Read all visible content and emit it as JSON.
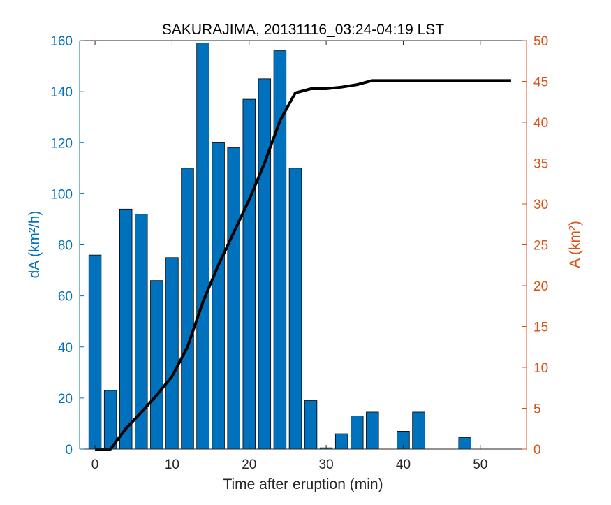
{
  "chart_data": {
    "type": "bar",
    "title": "SAKURAJIMA, 20131116_03:24-04:19 LST",
    "xlabel": "Time after eruption (min)",
    "ylabel_left": "dA (km²/h)",
    "ylabel_right": "A (km²)",
    "xlim": [
      -2,
      56
    ],
    "ylim_left": [
      0,
      160
    ],
    "ylim_right": [
      0,
      50
    ],
    "xticks": [
      0,
      10,
      20,
      30,
      40,
      50
    ],
    "yticks_left": [
      0,
      20,
      40,
      60,
      80,
      100,
      120,
      140,
      160
    ],
    "yticks_right": [
      0,
      5,
      10,
      15,
      20,
      25,
      30,
      35,
      40,
      45,
      50
    ],
    "left_axis_color": "#0072BD",
    "right_axis_color": "#D95319",
    "bar_color": "#0072BD",
    "line_color": "#000000",
    "bars": {
      "name": "dA",
      "axis": "left",
      "x": [
        0,
        2,
        4,
        6,
        8,
        10,
        12,
        14,
        16,
        18,
        20,
        22,
        24,
        26,
        28,
        30,
        32,
        34,
        36,
        38,
        40,
        42,
        44,
        46,
        48,
        50,
        52,
        54
      ],
      "values": [
        76,
        23,
        94,
        92,
        66,
        75,
        110,
        159,
        120,
        118,
        137,
        145,
        156,
        110,
        19,
        0.5,
        6,
        13,
        14.5,
        0,
        7,
        14.5,
        0,
        0,
        4.5,
        0,
        0,
        0
      ]
    },
    "line": {
      "name": "A",
      "axis": "right",
      "x": [
        0,
        2,
        4,
        6,
        8,
        10,
        12,
        14,
        16,
        18,
        20,
        22,
        24,
        26,
        28,
        30,
        32,
        34,
        36,
        38,
        40,
        42,
        44,
        46,
        48,
        50,
        52,
        54
      ],
      "values": [
        0,
        0,
        2.5,
        4.5,
        6.6,
        8.9,
        12.5,
        18,
        22.5,
        26.5,
        30.5,
        35,
        40.2,
        43.6,
        44.1,
        44.1,
        44.3,
        44.6,
        45.1,
        45.1,
        45.1,
        45.1,
        45.1,
        45.1,
        45.1,
        45.1,
        45.1,
        45.1
      ]
    }
  }
}
